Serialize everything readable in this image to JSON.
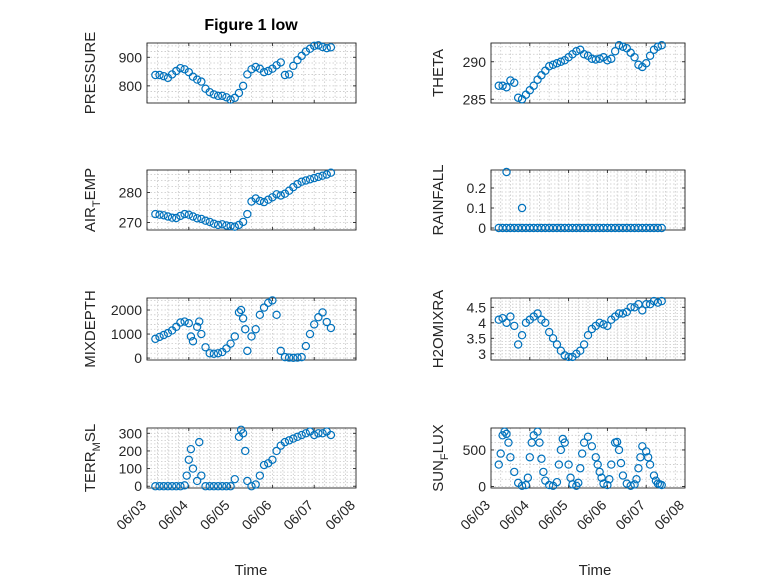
{
  "figure": {
    "title": "Figure 1 low",
    "xlabel": "Time",
    "marker_color": "#0072bd"
  },
  "chart_data": [
    {
      "type": "scatter",
      "ylabel": "PRESSURE",
      "ylabel_sub": "",
      "ylim": [
        740,
        950
      ],
      "yticks": [
        800,
        900
      ],
      "xticks": [],
      "x": [
        3.2,
        3.3,
        3.4,
        3.5,
        3.6,
        3.7,
        3.8,
        3.9,
        4.0,
        4.1,
        4.2,
        4.3,
        4.4,
        4.5,
        4.6,
        4.7,
        4.8,
        4.9,
        5.0,
        5.1,
        5.2,
        5.3,
        5.4,
        5.5,
        5.6,
        5.7,
        5.8,
        5.9,
        6.0,
        6.1,
        6.2,
        6.3,
        6.4,
        6.5,
        6.6,
        6.7,
        6.8,
        6.9,
        7.0,
        7.1,
        7.2,
        7.3,
        7.4
      ],
      "y": [
        838,
        838,
        834,
        828,
        840,
        852,
        862,
        858,
        848,
        832,
        822,
        815,
        790,
        778,
        770,
        765,
        765,
        760,
        752,
        758,
        775,
        800,
        840,
        858,
        866,
        860,
        848,
        852,
        860,
        872,
        882,
        838,
        840,
        870,
        890,
        905,
        920,
        930,
        940,
        942,
        936,
        932,
        935
      ]
    },
    {
      "type": "scatter",
      "ylabel": "THETA",
      "ylabel_sub": "",
      "ylim": [
        284.5,
        292.5
      ],
      "yticks": [
        285,
        290
      ],
      "xticks": [],
      "x": [
        3.2,
        3.3,
        3.4,
        3.5,
        3.6,
        3.7,
        3.8,
        3.9,
        4.0,
        4.1,
        4.2,
        4.3,
        4.4,
        4.5,
        4.6,
        4.7,
        4.8,
        4.9,
        5.0,
        5.1,
        5.2,
        5.3,
        5.4,
        5.5,
        5.6,
        5.7,
        5.8,
        5.9,
        6.0,
        6.1,
        6.2,
        6.3,
        6.4,
        6.5,
        6.6,
        6.7,
        6.8,
        6.9,
        7.0,
        7.1,
        7.2,
        7.3,
        7.4
      ],
      "y": [
        286.8,
        286.8,
        286.6,
        287.5,
        287.2,
        285.2,
        285.0,
        285.6,
        286.2,
        286.8,
        287.6,
        288.2,
        288.8,
        289.4,
        289.6,
        289.8,
        290.0,
        290.2,
        290.6,
        291.0,
        291.4,
        291.6,
        291.0,
        290.8,
        290.4,
        290.3,
        290.4,
        290.6,
        290.2,
        290.4,
        291.4,
        292.2,
        292.0,
        291.8,
        291.2,
        290.6,
        289.6,
        289.3,
        289.8,
        290.8,
        291.6,
        292.0,
        292.2
      ]
    },
    {
      "type": "scatter",
      "ylabel": "AIR",
      "ylabel_sub": "T",
      "ylabel_rest": "EMP",
      "ylim": [
        267.5,
        287.5
      ],
      "yticks": [
        270,
        280
      ],
      "xticks": [],
      "x": [
        3.2,
        3.3,
        3.4,
        3.5,
        3.6,
        3.7,
        3.8,
        3.9,
        4.0,
        4.1,
        4.2,
        4.3,
        4.4,
        4.5,
        4.6,
        4.7,
        4.8,
        4.9,
        5.0,
        5.1,
        5.2,
        5.3,
        5.4,
        5.5,
        5.6,
        5.7,
        5.8,
        5.9,
        6.0,
        6.1,
        6.2,
        6.3,
        6.4,
        6.5,
        6.6,
        6.7,
        6.8,
        6.9,
        7.0,
        7.1,
        7.2,
        7.3,
        7.4
      ],
      "y": [
        272.8,
        272.6,
        272.4,
        272.0,
        271.6,
        271.5,
        272.2,
        272.8,
        272.6,
        272.0,
        271.4,
        271.2,
        270.6,
        270.2,
        269.6,
        269.2,
        269.4,
        269.0,
        268.8,
        268.6,
        269.2,
        270.2,
        272.8,
        277.0,
        278.0,
        277.2,
        276.8,
        277.6,
        278.4,
        279.4,
        279.0,
        279.6,
        280.6,
        281.8,
        282.8,
        283.6,
        284.0,
        284.4,
        284.8,
        285.2,
        285.6,
        286.0,
        286.6
      ]
    },
    {
      "type": "scatter",
      "ylabel": "RAINFALL",
      "ylabel_sub": "",
      "ylim": [
        -0.01,
        0.29
      ],
      "yticks": [
        0,
        0.1,
        0.2
      ],
      "xticks": [],
      "x": [
        3.2,
        3.3,
        3.4,
        3.5,
        3.6,
        3.7,
        3.8,
        3.9,
        4.0,
        4.1,
        4.2,
        4.3,
        4.4,
        4.5,
        4.6,
        4.7,
        4.8,
        4.9,
        5.0,
        5.1,
        5.2,
        5.3,
        5.4,
        5.5,
        5.6,
        5.7,
        5.8,
        5.9,
        6.0,
        6.1,
        6.2,
        6.3,
        6.4,
        6.5,
        6.6,
        6.7,
        6.8,
        6.9,
        7.0,
        7.1,
        7.2,
        7.3,
        7.4,
        3.4,
        3.8
      ],
      "y": [
        0,
        0,
        0,
        0,
        0,
        0,
        0,
        0,
        0,
        0,
        0,
        0,
        0,
        0,
        0,
        0,
        0,
        0,
        0,
        0,
        0,
        0,
        0,
        0,
        0,
        0,
        0,
        0,
        0,
        0,
        0,
        0,
        0,
        0,
        0,
        0,
        0,
        0,
        0,
        0,
        0,
        0,
        0,
        0.28,
        0.1
      ]
    },
    {
      "type": "scatter",
      "ylabel": "MIXDEPTH",
      "ylabel_sub": "",
      "ylim": [
        -80,
        2500
      ],
      "yticks": [
        0,
        1000,
        2000
      ],
      "xticks": [],
      "x": [
        3.2,
        3.3,
        3.4,
        3.5,
        3.6,
        3.7,
        3.8,
        3.9,
        4.0,
        4.05,
        4.1,
        4.2,
        4.25,
        4.3,
        4.4,
        4.5,
        4.6,
        4.7,
        4.8,
        4.9,
        5.0,
        5.1,
        5.2,
        5.25,
        5.3,
        5.35,
        5.4,
        5.5,
        5.6,
        5.7,
        5.8,
        5.9,
        6.0,
        6.1,
        6.2,
        6.3,
        6.4,
        6.5,
        6.6,
        6.7,
        6.8,
        6.9,
        7.0,
        7.1,
        7.2,
        7.3,
        7.4
      ],
      "y": [
        800,
        880,
        960,
        1040,
        1150,
        1300,
        1480,
        1520,
        1450,
        900,
        700,
        1300,
        1520,
        1000,
        450,
        200,
        180,
        200,
        250,
        400,
        600,
        900,
        1900,
        2000,
        1650,
        1200,
        300,
        900,
        1200,
        1800,
        2100,
        2300,
        2400,
        1800,
        300,
        40,
        20,
        10,
        20,
        40,
        500,
        1000,
        1400,
        1700,
        1900,
        1500,
        1250
      ]
    },
    {
      "type": "scatter",
      "ylabel": "H2OMIXRA",
      "ylabel_sub": "",
      "ylim": [
        2.8,
        4.8
      ],
      "yticks": [
        3,
        3.5,
        4,
        4.5
      ],
      "xticks": [],
      "x": [
        3.2,
        3.3,
        3.4,
        3.5,
        3.6,
        3.7,
        3.8,
        3.9,
        4.0,
        4.1,
        4.2,
        4.3,
        4.4,
        4.5,
        4.6,
        4.7,
        4.8,
        4.9,
        5.0,
        5.1,
        5.2,
        5.3,
        5.4,
        5.5,
        5.6,
        5.7,
        5.8,
        5.9,
        6.0,
        6.1,
        6.2,
        6.3,
        6.4,
        6.5,
        6.6,
        6.7,
        6.8,
        6.9,
        7.0,
        7.1,
        7.2,
        7.3,
        7.4
      ],
      "y": [
        4.1,
        4.15,
        4.0,
        4.2,
        3.9,
        3.3,
        3.6,
        4.0,
        4.1,
        4.2,
        4.3,
        4.1,
        4.0,
        3.7,
        3.5,
        3.3,
        3.1,
        2.95,
        2.9,
        2.9,
        3.0,
        3.1,
        3.3,
        3.6,
        3.8,
        3.9,
        4.0,
        3.95,
        3.9,
        4.1,
        4.2,
        4.3,
        4.3,
        4.35,
        4.5,
        4.5,
        4.6,
        4.4,
        4.6,
        4.6,
        4.7,
        4.65,
        4.7
      ]
    },
    {
      "type": "scatter",
      "ylabel": "TERR",
      "ylabel_sub": "M",
      "ylabel_rest": "SL",
      "ylim": [
        -10,
        330
      ],
      "yticks": [
        0,
        100,
        200,
        300
      ],
      "xticks": [
        "06/03",
        "06/04",
        "06/05",
        "06/06",
        "06/07",
        "06/08"
      ],
      "x": [
        3.2,
        3.3,
        3.4,
        3.5,
        3.6,
        3.7,
        3.8,
        3.9,
        3.95,
        4.0,
        4.05,
        4.1,
        4.2,
        4.25,
        4.3,
        4.4,
        4.5,
        4.6,
        4.7,
        4.8,
        4.9,
        5.0,
        5.1,
        5.2,
        5.25,
        5.3,
        5.35,
        5.4,
        5.5,
        5.6,
        5.7,
        5.8,
        5.9,
        6.0,
        6.1,
        6.2,
        6.3,
        6.4,
        6.5,
        6.6,
        6.7,
        6.8,
        6.9,
        7.0,
        7.1,
        7.2,
        7.3,
        7.4
      ],
      "y": [
        0,
        0,
        0,
        0,
        0,
        0,
        0,
        5,
        60,
        150,
        210,
        100,
        30,
        250,
        60,
        0,
        0,
        0,
        0,
        0,
        0,
        0,
        40,
        280,
        320,
        300,
        200,
        30,
        0,
        10,
        60,
        120,
        130,
        150,
        200,
        230,
        250,
        260,
        270,
        280,
        290,
        300,
        310,
        290,
        300,
        300,
        310,
        290
      ]
    },
    {
      "type": "scatter",
      "ylabel": "SUN",
      "ylabel_sub": "F",
      "ylabel_rest": "LUX",
      "ylim": [
        -20,
        800
      ],
      "yticks": [
        0,
        500
      ],
      "xticks": [
        "06/03",
        "06/04",
        "06/05",
        "06/06",
        "06/07",
        "06/08"
      ],
      "x": [
        3.2,
        3.25,
        3.3,
        3.35,
        3.4,
        3.45,
        3.5,
        3.6,
        3.7,
        3.8,
        3.9,
        3.95,
        4.0,
        4.05,
        4.1,
        4.2,
        4.25,
        4.3,
        4.35,
        4.4,
        4.5,
        4.6,
        4.7,
        4.75,
        4.8,
        4.85,
        4.9,
        5.0,
        5.05,
        5.1,
        5.2,
        5.25,
        5.3,
        5.35,
        5.4,
        5.5,
        5.6,
        5.7,
        5.75,
        5.8,
        5.85,
        5.9,
        6.0,
        6.05,
        6.1,
        6.2,
        6.25,
        6.3,
        6.35,
        6.4,
        6.5,
        6.6,
        6.7,
        6.75,
        6.8,
        6.85,
        6.9,
        7.0,
        7.05,
        7.1,
        7.2,
        7.25,
        7.3,
        7.35,
        7.4
      ],
      "y": [
        300,
        450,
        700,
        750,
        720,
        600,
        400,
        200,
        50,
        10,
        20,
        120,
        400,
        600,
        700,
        750,
        600,
        380,
        200,
        80,
        20,
        10,
        60,
        300,
        500,
        650,
        600,
        300,
        120,
        30,
        10,
        50,
        250,
        450,
        600,
        680,
        550,
        400,
        300,
        200,
        120,
        40,
        20,
        100,
        300,
        600,
        610,
        500,
        320,
        150,
        40,
        10,
        30,
        100,
        250,
        400,
        550,
        480,
        400,
        300,
        150,
        80,
        40,
        30,
        20
      ]
    }
  ]
}
